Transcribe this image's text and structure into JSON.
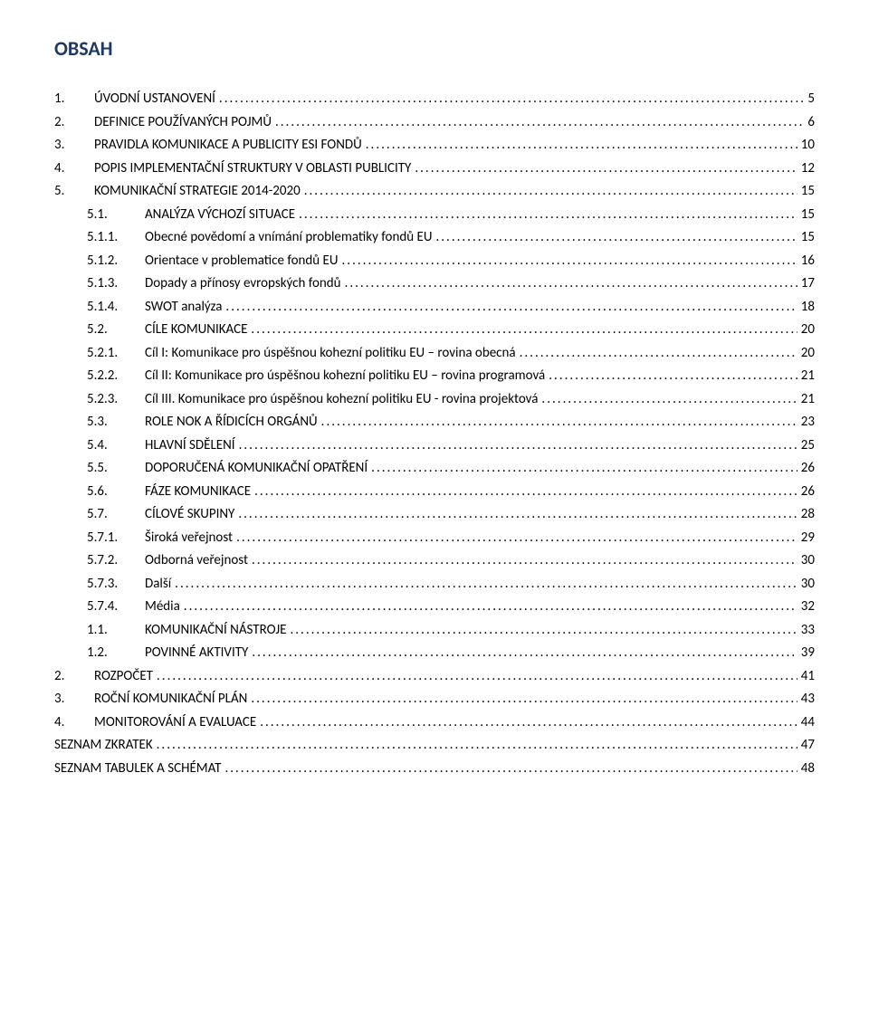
{
  "title": "OBSAH",
  "toc": [
    {
      "lvl": 0,
      "num": "1.",
      "label": "ÚVODNÍ USTANOVENÍ",
      "page": "5"
    },
    {
      "lvl": 0,
      "num": "2.",
      "label": "DEFINICE POUŽÍVANÝCH POJMŮ",
      "page": "6"
    },
    {
      "lvl": 0,
      "num": "3.",
      "label": "PRAVIDLA KOMUNIKACE A PUBLICITY ESI FONDŮ",
      "page": "10"
    },
    {
      "lvl": 0,
      "num": "4.",
      "label": "POPIS IMPLEMENTAČNÍ STRUKTURY V OBLASTI PUBLICITY",
      "page": "12"
    },
    {
      "lvl": 0,
      "num": "5.",
      "label": "KOMUNIKAČNÍ STRATEGIE 2014-2020",
      "page": "15"
    },
    {
      "lvl": 1,
      "num": "5.1.",
      "label": "ANALÝZA VÝCHOZÍ SITUACE",
      "page": "15"
    },
    {
      "lvl": 2,
      "num": "5.1.1.",
      "label": "Obecné povědomí a vnímání problematiky fondů EU",
      "page": "15"
    },
    {
      "lvl": 2,
      "num": "5.1.2.",
      "label": "Orientace v problematice fondů EU",
      "page": "16"
    },
    {
      "lvl": 2,
      "num": "5.1.3.",
      "label": "Dopady a přínosy evropských fondů",
      "page": "17"
    },
    {
      "lvl": 2,
      "num": "5.1.4.",
      "label": "SWOT analýza",
      "page": "18"
    },
    {
      "lvl": 1,
      "num": "5.2.",
      "label": "CÍLE KOMUNIKACE",
      "page": "20"
    },
    {
      "lvl": 2,
      "num": "5.2.1.",
      "label": "Cíl I: Komunikace pro úspěšnou kohezní politiku EU – rovina obecná",
      "page": "20"
    },
    {
      "lvl": 2,
      "num": "5.2.2.",
      "label": "Cíl II: Komunikace pro úspěšnou kohezní politiku EU – rovina programová",
      "page": "21"
    },
    {
      "lvl": 2,
      "num": "5.2.3.",
      "label": "Cíl III. Komunikace pro úspěšnou kohezní politiku EU - rovina projektová",
      "page": "21"
    },
    {
      "lvl": 1,
      "num": "5.3.",
      "label": "ROLE NOK A ŘÍDICÍCH ORGÁNŮ",
      "page": "23"
    },
    {
      "lvl": 1,
      "num": "5.4.",
      "label": "HLAVNÍ SDĚLENÍ",
      "page": "25"
    },
    {
      "lvl": 1,
      "num": "5.5.",
      "label": "DOPORUČENÁ KOMUNIKAČNÍ OPATŘENÍ",
      "page": "26"
    },
    {
      "lvl": 1,
      "num": "5.6.",
      "label": "FÁZE KOMUNIKACE",
      "page": "26"
    },
    {
      "lvl": 1,
      "num": "5.7.",
      "label": "CÍLOVÉ SKUPINY",
      "page": "28"
    },
    {
      "lvl": 2,
      "num": "5.7.1.",
      "label": "Široká veřejnost",
      "page": "29"
    },
    {
      "lvl": 2,
      "num": "5.7.2.",
      "label": "Odborná veřejnost",
      "page": "30"
    },
    {
      "lvl": 2,
      "num": "5.7.3.",
      "label": "Další",
      "page": "30"
    },
    {
      "lvl": 2,
      "num": "5.7.4.",
      "label": "Média",
      "page": "32"
    },
    {
      "lvl": 1,
      "num": "1.1.",
      "label": "KOMUNIKAČNÍ NÁSTROJE",
      "page": "33"
    },
    {
      "lvl": 1,
      "num": "1.2.",
      "label": "POVINNÉ AKTIVITY",
      "page": "39"
    },
    {
      "lvl": 0,
      "num": "2.",
      "label": "ROZPOČET",
      "page": "41"
    },
    {
      "lvl": 0,
      "num": "3.",
      "label": "ROČNÍ KOMUNIKAČNÍ PLÁN",
      "page": "43"
    },
    {
      "lvl": 0,
      "num": "4.",
      "label": "MONITOROVÁNÍ A EVALUACE",
      "page": "44"
    },
    {
      "lvl": 0,
      "num": "",
      "label": "SEZNAM ZKRATEK",
      "page": "47",
      "scap": true
    },
    {
      "lvl": 0,
      "num": "",
      "label": "SEZNAM TABULEK A SCHÉMAT",
      "page": "48",
      "scap": true
    }
  ]
}
